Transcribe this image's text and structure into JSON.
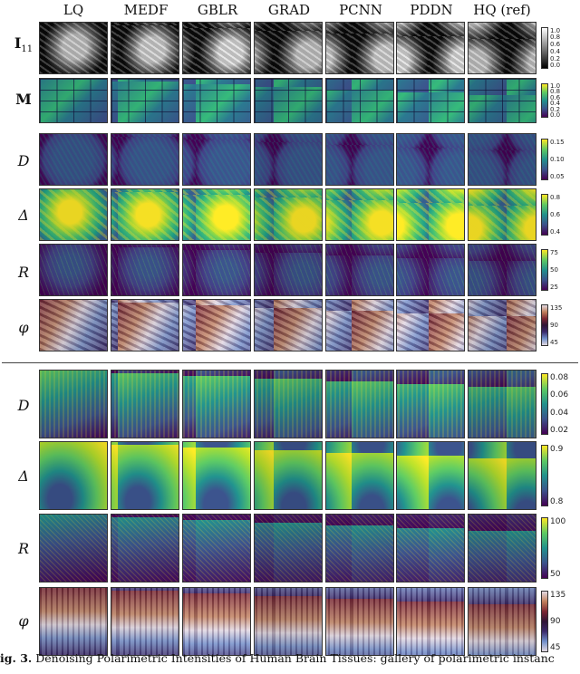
{
  "columns": [
    "LQ",
    "MEDF",
    "GBLR",
    "GRAD",
    "PCNN",
    "PDDN",
    "HQ (ref)"
  ],
  "row_labels": {
    "I11": {
      "main": "I",
      "sub": "11"
    },
    "M": "M",
    "D": "D",
    "Delta": "Δ",
    "R": "R",
    "phi": "φ"
  },
  "colorbars": {
    "top": {
      "I11": [
        "1.0",
        "0.8",
        "0.6",
        "0.4",
        "0.2",
        "0.0"
      ],
      "M": [
        "1.0",
        "0.8",
        "0.6",
        "0.4",
        "0.2",
        "0.0"
      ],
      "D": [
        "0.15",
        "0.10",
        "0.05"
      ],
      "Delta": [
        "0.8",
        "0.6",
        "0.4"
      ],
      "R": [
        "75",
        "50",
        "25"
      ],
      "phi": [
        "135",
        "90",
        "45"
      ]
    },
    "bottom": {
      "D": [
        "0.08",
        "0.06",
        "0.04",
        "0.02"
      ],
      "Delta": [
        "0.9",
        "0.8"
      ],
      "R": [
        "100",
        "50"
      ],
      "phi": [
        "135",
        "90",
        "45"
      ]
    }
  },
  "colormaps": {
    "gray": [
      "#000000",
      "#ffffff"
    ],
    "viridis": [
      "#440154",
      "#3b528b",
      "#21918c",
      "#5ec962",
      "#fde725"
    ],
    "twilight": [
      "#e2d9e2",
      "#6f8ec9",
      "#3b2a6b",
      "#2f1436",
      "#7c2732",
      "#c0805c",
      "#e2d9e2"
    ]
  },
  "caption": {
    "label": "ig. 3.",
    "text": " Denoising Polarimetric Intensities of Human Brain Tissues: gallery of polarimetric instanc"
  }
}
